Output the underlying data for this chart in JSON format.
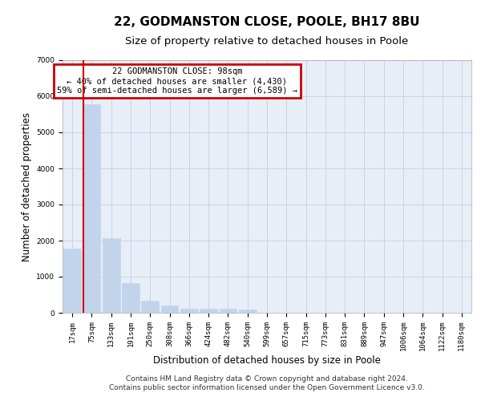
{
  "title": "22, GODMANSTON CLOSE, POOLE, BH17 8BU",
  "subtitle": "Size of property relative to detached houses in Poole",
  "xlabel": "Distribution of detached houses by size in Poole",
  "ylabel": "Number of detached properties",
  "categories": [
    "17sqm",
    "75sqm",
    "133sqm",
    "191sqm",
    "250sqm",
    "308sqm",
    "366sqm",
    "424sqm",
    "482sqm",
    "540sqm",
    "599sqm",
    "657sqm",
    "715sqm",
    "773sqm",
    "831sqm",
    "889sqm",
    "947sqm",
    "1006sqm",
    "1064sqm",
    "1122sqm",
    "1180sqm"
  ],
  "values": [
    1780,
    5780,
    2060,
    820,
    340,
    190,
    120,
    110,
    110,
    80,
    0,
    0,
    0,
    0,
    0,
    0,
    0,
    0,
    0,
    0,
    0
  ],
  "bar_color": "#c2d4ec",
  "bar_edgecolor": "#c2d4ec",
  "ylim": [
    0,
    7000
  ],
  "yticks": [
    0,
    1000,
    2000,
    3000,
    4000,
    5000,
    6000,
    7000
  ],
  "annotation_title": "22 GODMANSTON CLOSE: 98sqm",
  "annotation_line1": "← 40% of detached houses are smaller (4,430)",
  "annotation_line2": "59% of semi-detached houses are larger (6,589) →",
  "annotation_box_edgecolor": "#cc0000",
  "annotation_box_facecolor": "#ffffff",
  "property_line_color": "#cc0000",
  "property_line_x": 1.45,
  "grid_color": "#c8d4e4",
  "background_color": "#e8eef8",
  "footer_line1": "Contains HM Land Registry data © Crown copyright and database right 2024.",
  "footer_line2": "Contains public sector information licensed under the Open Government Licence v3.0.",
  "title_fontsize": 11,
  "subtitle_fontsize": 9.5,
  "axis_label_fontsize": 8.5,
  "tick_fontsize": 6.5,
  "annotation_fontsize": 7.5,
  "footer_fontsize": 6.5
}
